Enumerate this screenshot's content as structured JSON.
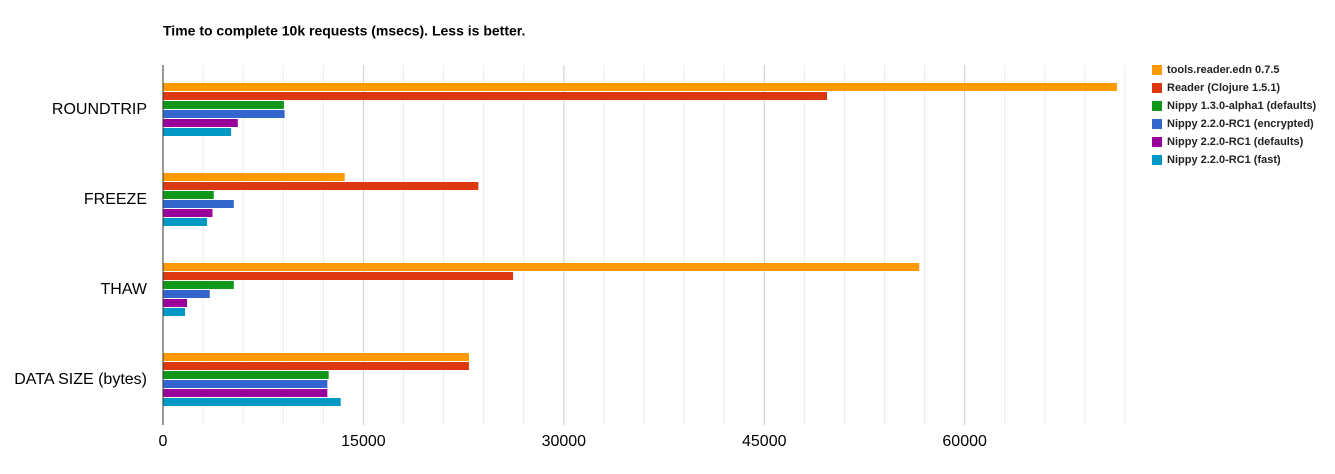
{
  "chart_data": {
    "type": "hbar",
    "title": "Time to complete 10k requests (msecs). Less is better.",
    "categories": [
      "ROUNDTRIP",
      "FREEZE",
      "THAW",
      "DATA SIZE (bytes)"
    ],
    "series": [
      {
        "name": "tools.reader.edn 0.7.5",
        "color": "#ff9900",
        "values": [
          71400,
          13600,
          56600,
          22900
        ]
      },
      {
        "name": "Reader (Clojure 1.5.1)",
        "color": "#dc3912",
        "values": [
          49700,
          23600,
          26200,
          22900
        ]
      },
      {
        "name": "Nippy 1.3.0-alpha1 (defaults)",
        "color": "#109618",
        "values": [
          9050,
          3800,
          5300,
          12400
        ]
      },
      {
        "name": "Nippy 2.2.0-RC1 (encrypted)",
        "color": "#3366cc",
        "values": [
          9100,
          5300,
          3500,
          12300
        ]
      },
      {
        "name": "Nippy 2.2.0-RC1 (defaults)",
        "color": "#990099",
        "values": [
          5600,
          3700,
          1800,
          12300
        ]
      },
      {
        "name": "Nippy 2.2.0-RC1 (fast)",
        "color": "#0099c6",
        "values": [
          5100,
          3300,
          1650,
          13300
        ]
      }
    ],
    "xlim": [
      0,
      72000
    ],
    "xticks": [
      0,
      15000,
      30000,
      45000,
      60000
    ],
    "xminorticks": [
      3000,
      6000,
      9000,
      12000,
      18000,
      21000,
      24000,
      27000,
      33000,
      36000,
      39000,
      42000,
      48000,
      51000,
      54000,
      57000,
      63000,
      66000,
      69000,
      72000
    ],
    "grid": true,
    "legend": "right"
  }
}
